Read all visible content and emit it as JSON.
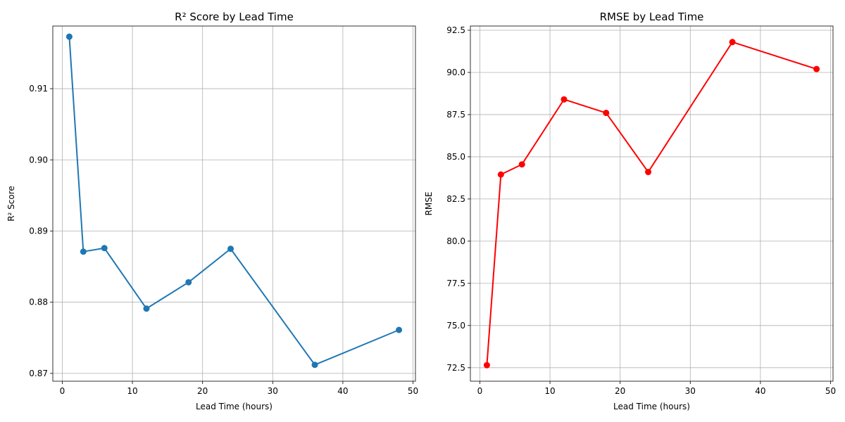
{
  "chart_data": [
    {
      "type": "line",
      "title": "R² Score by Lead Time",
      "xlabel": "Lead Time (hours)",
      "ylabel": "R² Score",
      "xlim": [
        -1.35,
        50.35
      ],
      "ylim": [
        0.8689,
        0.9188
      ],
      "xticks": [
        0,
        10,
        20,
        30,
        40,
        50
      ],
      "xtick_labels": [
        "0",
        "10",
        "20",
        "30",
        "40",
        "50"
      ],
      "yticks": [
        0.87,
        0.88,
        0.89,
        0.9,
        0.91
      ],
      "ytick_labels": [
        "0.87",
        "0.88",
        "0.89",
        "0.90",
        "0.91"
      ],
      "grid": true,
      "series": [
        {
          "color": "#1f77b4",
          "marker": "circle",
          "x": [
            1,
            3,
            6,
            12,
            18,
            24,
            36,
            48
          ],
          "y": [
            0.9173,
            0.8871,
            0.8876,
            0.8791,
            0.8828,
            0.8875,
            0.8712,
            0.8761
          ]
        }
      ]
    },
    {
      "type": "line",
      "title": "RMSE by Lead Time",
      "xlabel": "Lead Time (hours)",
      "ylabel": "RMSE",
      "xlim": [
        -1.35,
        50.35
      ],
      "ylim": [
        71.7,
        92.75
      ],
      "xticks": [
        0,
        10,
        20,
        30,
        40,
        50
      ],
      "xtick_labels": [
        "0",
        "10",
        "20",
        "30",
        "40",
        "50"
      ],
      "yticks": [
        72.5,
        75.0,
        77.5,
        80.0,
        82.5,
        85.0,
        87.5,
        90.0,
        92.5
      ],
      "ytick_labels": [
        "72.5",
        "75.0",
        "77.5",
        "80.0",
        "82.5",
        "85.0",
        "87.5",
        "90.0",
        "92.5"
      ],
      "grid": true,
      "series": [
        {
          "color": "#ff0000",
          "marker": "circle",
          "x": [
            1,
            3,
            6,
            12,
            18,
            24,
            36,
            48
          ],
          "y": [
            72.65,
            83.95,
            84.55,
            88.4,
            87.6,
            84.1,
            91.8,
            90.2
          ]
        }
      ]
    }
  ]
}
